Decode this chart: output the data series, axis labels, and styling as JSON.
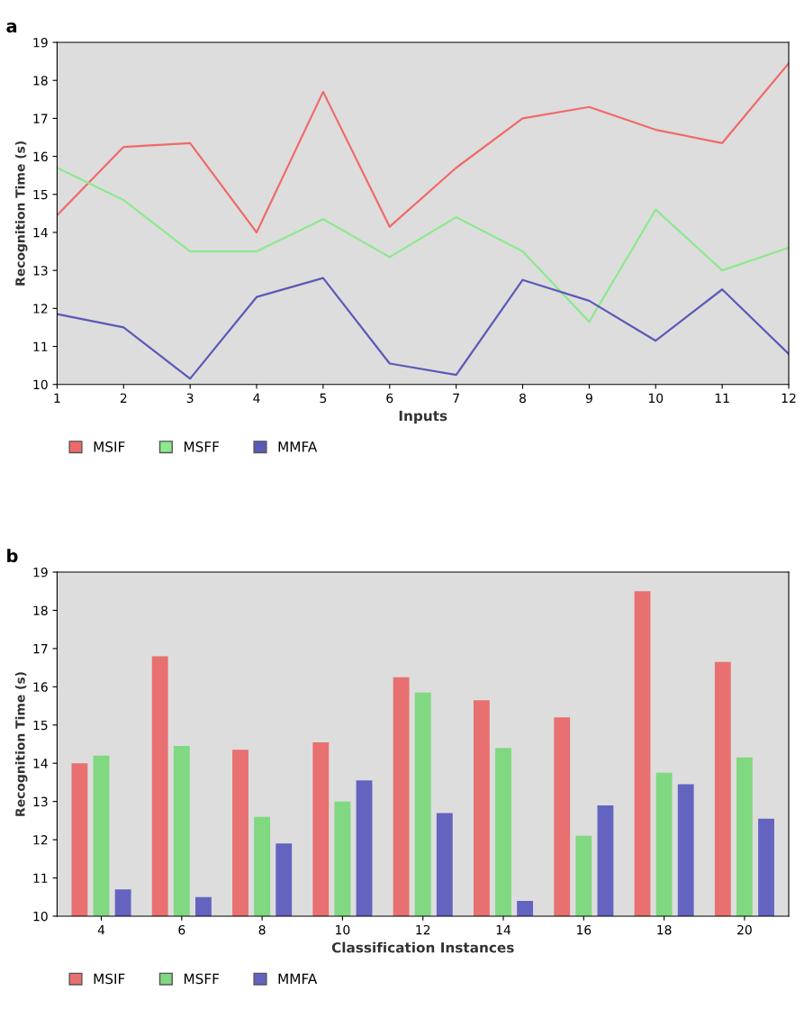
{
  "chart_data": [
    {
      "type": "line",
      "title": "a",
      "xlabel": "Inputs",
      "ylabel": "Recognition Time (s)",
      "x": [
        1,
        2,
        3,
        4,
        5,
        6,
        7,
        8,
        9,
        10,
        11,
        12
      ],
      "xlim": [
        1,
        12
      ],
      "xticks": [
        1,
        2,
        3,
        4,
        5,
        6,
        7,
        8,
        9,
        10,
        11,
        12
      ],
      "ylim": [
        10,
        19
      ],
      "yticks": [
        10,
        11,
        12,
        13,
        14,
        15,
        16,
        17,
        18,
        19
      ],
      "legend": "bottom",
      "grid": false,
      "series": [
        {
          "name": "MSIF",
          "color": "#f06a6a",
          "values": [
            14.45,
            16.25,
            16.35,
            14.0,
            17.7,
            14.15,
            15.7,
            17.0,
            17.3,
            16.7,
            16.35,
            18.45
          ]
        },
        {
          "name": "MSFF",
          "color": "#8ee88e",
          "values": [
            15.7,
            14.85,
            13.5,
            13.5,
            14.35,
            13.35,
            14.4,
            13.5,
            11.65,
            14.6,
            13.0,
            13.6
          ]
        },
        {
          "name": "MMFA",
          "color": "#5a5ab8",
          "values": [
            11.85,
            11.5,
            10.15,
            12.3,
            12.8,
            10.55,
            10.25,
            12.75,
            12.2,
            11.15,
            12.5,
            10.8
          ]
        }
      ]
    },
    {
      "type": "bar",
      "title": "b",
      "xlabel": "Classification Instances",
      "ylabel": "Recognition Time (s)",
      "categories": [
        "4",
        "6",
        "8",
        "10",
        "12",
        "14",
        "16",
        "18",
        "20"
      ],
      "ylim": [
        10,
        19
      ],
      "yticks": [
        10,
        11,
        12,
        13,
        14,
        15,
        16,
        17,
        18,
        19
      ],
      "legend": "bottom",
      "grid": false,
      "series": [
        {
          "name": "MSIF",
          "color": "#e87070",
          "values": [
            14.0,
            16.8,
            14.35,
            14.55,
            16.25,
            15.65,
            15.2,
            18.5,
            16.65
          ]
        },
        {
          "name": "MSFF",
          "color": "#80d880",
          "values": [
            14.2,
            14.45,
            12.6,
            13.0,
            15.85,
            14.4,
            12.1,
            13.75,
            14.15
          ]
        },
        {
          "name": "MMFA",
          "color": "#6464c0",
          "values": [
            10.7,
            10.5,
            11.9,
            13.55,
            12.7,
            10.4,
            12.9,
            13.45,
            12.55
          ]
        }
      ]
    }
  ]
}
